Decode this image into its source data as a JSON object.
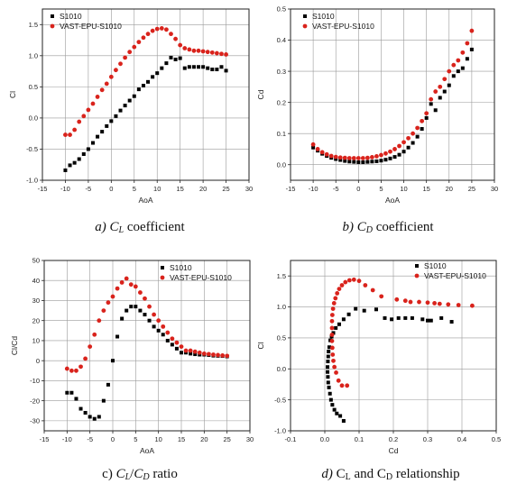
{
  "colors": {
    "s1010": "#000000",
    "vast": "#d9231c",
    "grid": "#9a9a9a",
    "frame": "#222222"
  },
  "captions": [
    {
      "pre": "a) ",
      "sym": "C",
      "sub": "L",
      "post": " coefficient",
      "italic_sym": true,
      "italic_pre": true
    },
    {
      "pre": "b) ",
      "sym": "C",
      "sub": "D",
      "post": " coefficient",
      "italic_sym": true,
      "italic_pre": true
    },
    {
      "pre": "c) ",
      "sym": "C",
      "sub": "L",
      "mid": "/",
      "sym2": "C",
      "sub2": "D",
      "post": " ratio",
      "italic_sym": true,
      "italic_pre": false
    },
    {
      "pre": "d) ",
      "sym": "C",
      "sub": "L",
      "mid": " and ",
      "sym2": "C",
      "sub2": "D",
      "post": " relationship",
      "italic_sym": false,
      "italic_pre": true
    }
  ],
  "chart_data": [
    {
      "type": "scatter",
      "xlabel": "AoA",
      "ylabel": "Cl",
      "xlim": [
        -15,
        30
      ],
      "ylim": [
        -1.0,
        1.75
      ],
      "xticks": [
        -15,
        -10,
        -5,
        0,
        5,
        10,
        15,
        20,
        25,
        30
      ],
      "yticks": [
        -1.0,
        -0.5,
        0.0,
        0.5,
        1.0,
        1.5
      ],
      "ytick_labels": [
        "-1.0",
        "-0.5",
        "0.0",
        "0.5",
        "1.0",
        "1.5"
      ],
      "grid": true,
      "legend_position": "top-left",
      "series": [
        {
          "name": "S1010",
          "marker": "square",
          "color": "#000000",
          "x": [
            -10,
            -9,
            -8,
            -7,
            -6,
            -5,
            -4,
            -3,
            -2,
            -1,
            0,
            1,
            2,
            3,
            4,
            5,
            6,
            7,
            8,
            9,
            10,
            11,
            12,
            13,
            14,
            15,
            16,
            17,
            18,
            19,
            20,
            21,
            22,
            23,
            24,
            25
          ],
          "y": [
            -0.84,
            -0.76,
            -0.72,
            -0.66,
            -0.58,
            -0.5,
            -0.4,
            -0.3,
            -0.22,
            -0.13,
            -0.05,
            0.03,
            0.12,
            0.2,
            0.28,
            0.35,
            0.46,
            0.52,
            0.58,
            0.66,
            0.72,
            0.8,
            0.88,
            0.97,
            0.94,
            0.96,
            0.8,
            0.82,
            0.82,
            0.82,
            0.82,
            0.8,
            0.78,
            0.78,
            0.82,
            0.76
          ]
        },
        {
          "name": "VAST-EPU-S1010",
          "marker": "circle",
          "color": "#d9231c",
          "x": [
            -10,
            -9,
            -8,
            -7,
            -6,
            -5,
            -4,
            -3,
            -2,
            -1,
            0,
            1,
            2,
            3,
            4,
            5,
            6,
            7,
            8,
            9,
            10,
            11,
            12,
            13,
            14,
            15,
            16,
            17,
            18,
            19,
            20,
            21,
            22,
            23,
            24,
            25
          ],
          "y": [
            -0.27,
            -0.27,
            -0.19,
            -0.06,
            0.03,
            0.13,
            0.23,
            0.34,
            0.45,
            0.55,
            0.66,
            0.77,
            0.87,
            0.97,
            1.06,
            1.14,
            1.22,
            1.29,
            1.35,
            1.4,
            1.43,
            1.44,
            1.42,
            1.35,
            1.27,
            1.17,
            1.12,
            1.1,
            1.08,
            1.08,
            1.07,
            1.06,
            1.05,
            1.04,
            1.03,
            1.02
          ]
        }
      ]
    },
    {
      "type": "scatter",
      "xlabel": "AoA",
      "ylabel": "Cd",
      "xlim": [
        -15,
        30
      ],
      "ylim": [
        -0.05,
        0.5
      ],
      "xticks": [
        -15,
        -10,
        -5,
        0,
        5,
        10,
        15,
        20,
        25,
        30
      ],
      "yticks": [
        0.0,
        0.1,
        0.2,
        0.3,
        0.4,
        0.5
      ],
      "ytick_labels": [
        "0.0",
        "0.1",
        "0.2",
        "0.3",
        "0.4",
        "0.5"
      ],
      "grid": true,
      "legend_position": "top-left",
      "series": [
        {
          "name": "S1010",
          "marker": "square",
          "color": "#000000",
          "x": [
            -10,
            -9,
            -8,
            -7,
            -6,
            -5,
            -4,
            -3,
            -2,
            -1,
            0,
            1,
            2,
            3,
            4,
            5,
            6,
            7,
            8,
            9,
            10,
            11,
            12,
            13,
            14,
            15,
            16,
            17,
            18,
            19,
            20,
            21,
            22,
            23,
            24,
            25
          ],
          "y": [
            0.055,
            0.045,
            0.035,
            0.028,
            0.022,
            0.018,
            0.015,
            0.012,
            0.01,
            0.009,
            0.008,
            0.008,
            0.009,
            0.01,
            0.011,
            0.013,
            0.016,
            0.02,
            0.025,
            0.032,
            0.042,
            0.055,
            0.07,
            0.09,
            0.115,
            0.15,
            0.195,
            0.175,
            0.215,
            0.235,
            0.255,
            0.285,
            0.3,
            0.31,
            0.34,
            0.37
          ]
        },
        {
          "name": "VAST-EPU-S1010",
          "marker": "circle",
          "color": "#d9231c",
          "x": [
            -10,
            -9,
            -8,
            -7,
            -6,
            -5,
            -4,
            -3,
            -2,
            -1,
            0,
            1,
            2,
            3,
            4,
            5,
            6,
            7,
            8,
            9,
            10,
            11,
            12,
            13,
            14,
            15,
            16,
            17,
            18,
            19,
            20,
            21,
            22,
            23,
            24,
            25
          ],
          "y": [
            0.065,
            0.05,
            0.04,
            0.033,
            0.028,
            0.025,
            0.023,
            0.022,
            0.021,
            0.021,
            0.021,
            0.021,
            0.022,
            0.024,
            0.027,
            0.031,
            0.036,
            0.042,
            0.05,
            0.06,
            0.072,
            0.085,
            0.1,
            0.118,
            0.14,
            0.165,
            0.21,
            0.235,
            0.25,
            0.275,
            0.3,
            0.32,
            0.335,
            0.36,
            0.39,
            0.43
          ]
        }
      ]
    },
    {
      "type": "scatter",
      "xlabel": "AoA",
      "ylabel": "Cl/Cd",
      "xlim": [
        -15,
        30
      ],
      "ylim": [
        -35,
        50
      ],
      "xticks": [
        -15,
        -10,
        -5,
        0,
        5,
        10,
        15,
        20,
        25,
        30
      ],
      "yticks": [
        -30,
        -20,
        -10,
        0,
        10,
        20,
        30,
        40,
        50
      ],
      "ytick_labels": [
        "-30",
        "-20",
        "-10",
        "0",
        "10",
        "20",
        "30",
        "40",
        "50"
      ],
      "grid": true,
      "legend_position": "top-right",
      "series": [
        {
          "name": "S1010",
          "marker": "square",
          "color": "#000000",
          "x": [
            -10,
            -9,
            -8,
            -7,
            -6,
            -5,
            -4,
            -3,
            -2,
            -1,
            0,
            1,
            2,
            3,
            4,
            5,
            6,
            7,
            8,
            9,
            10,
            11,
            12,
            13,
            14,
            15,
            16,
            17,
            18,
            19,
            20,
            21,
            22,
            23,
            24,
            25
          ],
          "y": [
            -16,
            -16,
            -19,
            -24,
            -26,
            -28,
            -29,
            -28,
            -20,
            -12,
            0,
            12,
            21,
            25,
            27,
            27,
            25,
            23,
            20,
            17,
            15,
            13,
            10,
            8,
            6,
            4,
            4,
            3.5,
            3.2,
            3,
            3,
            2.8,
            2.5,
            2.4,
            2.3,
            2.1
          ]
        },
        {
          "name": "VAST-EPU-S1010",
          "marker": "circle",
          "color": "#d9231c",
          "x": [
            -10,
            -9,
            -8,
            -7,
            -6,
            -5,
            -4,
            -3,
            -2,
            -1,
            0,
            1,
            2,
            3,
            4,
            5,
            6,
            7,
            8,
            9,
            10,
            11,
            12,
            13,
            14,
            15,
            16,
            17,
            18,
            19,
            20,
            21,
            22,
            23,
            24,
            25
          ],
          "y": [
            -4,
            -5,
            -5,
            -3,
            1,
            7,
            13,
            20,
            25,
            29,
            32,
            36,
            39,
            41,
            38,
            37,
            34,
            31,
            27,
            23,
            20,
            17,
            14,
            11,
            9,
            7,
            5,
            5,
            4.5,
            4,
            3.5,
            3.3,
            3,
            2.8,
            2.6,
            2.4
          ]
        }
      ]
    },
    {
      "type": "scatter",
      "xlabel": "Cd",
      "ylabel": "Cl",
      "xlim": [
        -0.1,
        0.5
      ],
      "ylim": [
        -1.0,
        1.75
      ],
      "xticks": [
        -0.1,
        0.0,
        0.1,
        0.2,
        0.3,
        0.4,
        0.5
      ],
      "xtick_labels": [
        "-0.1",
        "0.0",
        "0.1",
        "0.2",
        "0.3",
        "0.4",
        "0.5"
      ],
      "yticks": [
        -1.0,
        -0.5,
        0.0,
        0.5,
        1.0,
        1.5
      ],
      "ytick_labels": [
        "-1.0",
        "-0.5",
        "0.0",
        "0.5",
        "1.0",
        "1.5"
      ],
      "grid": true,
      "legend_position": "top-right",
      "series": [
        {
          "name": "S1010",
          "marker": "square",
          "color": "#000000",
          "x": [
            0.055,
            0.045,
            0.035,
            0.028,
            0.022,
            0.018,
            0.015,
            0.012,
            0.01,
            0.009,
            0.008,
            0.008,
            0.009,
            0.01,
            0.011,
            0.013,
            0.016,
            0.02,
            0.025,
            0.032,
            0.042,
            0.055,
            0.07,
            0.09,
            0.115,
            0.15,
            0.195,
            0.175,
            0.215,
            0.235,
            0.255,
            0.285,
            0.3,
            0.31,
            0.34,
            0.37
          ],
          "y": [
            -0.84,
            -0.76,
            -0.72,
            -0.66,
            -0.58,
            -0.5,
            -0.4,
            -0.3,
            -0.22,
            -0.13,
            -0.05,
            0.03,
            0.12,
            0.2,
            0.28,
            0.35,
            0.46,
            0.52,
            0.58,
            0.66,
            0.72,
            0.8,
            0.88,
            0.97,
            0.94,
            0.96,
            0.8,
            0.82,
            0.82,
            0.82,
            0.82,
            0.8,
            0.78,
            0.78,
            0.82,
            0.76
          ]
        },
        {
          "name": "VAST-EPU-S1010",
          "marker": "circle",
          "color": "#d9231c",
          "x": [
            0.065,
            0.05,
            0.04,
            0.033,
            0.028,
            0.025,
            0.023,
            0.022,
            0.021,
            0.021,
            0.021,
            0.021,
            0.022,
            0.024,
            0.027,
            0.031,
            0.036,
            0.042,
            0.05,
            0.06,
            0.072,
            0.085,
            0.1,
            0.118,
            0.14,
            0.165,
            0.21,
            0.235,
            0.25,
            0.275,
            0.3,
            0.32,
            0.335,
            0.36,
            0.39,
            0.43
          ],
          "y": [
            -0.27,
            -0.27,
            -0.19,
            -0.06,
            0.03,
            0.13,
            0.23,
            0.34,
            0.45,
            0.55,
            0.66,
            0.77,
            0.87,
            0.97,
            1.06,
            1.14,
            1.22,
            1.29,
            1.35,
            1.4,
            1.43,
            1.44,
            1.42,
            1.35,
            1.27,
            1.17,
            1.12,
            1.1,
            1.08,
            1.08,
            1.07,
            1.06,
            1.05,
            1.04,
            1.03,
            1.02
          ]
        }
      ]
    }
  ]
}
